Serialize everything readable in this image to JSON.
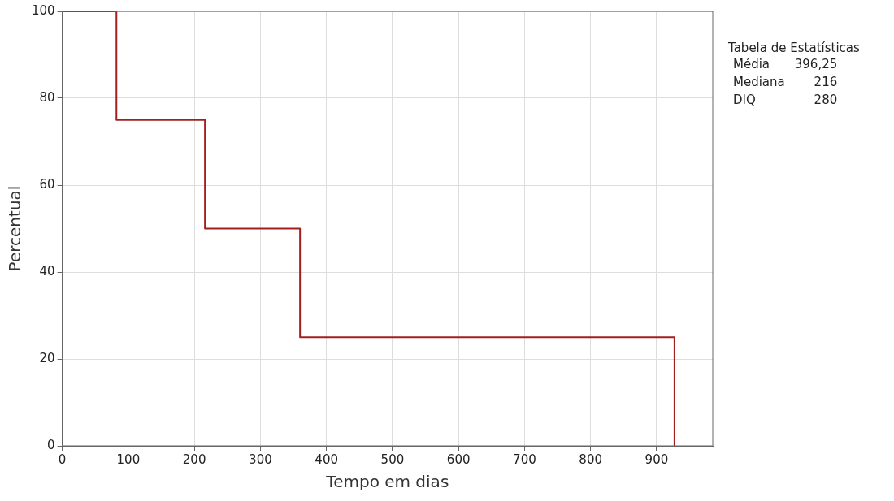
{
  "chart_data": {
    "type": "step",
    "xlabel": "Tempo em dias",
    "ylabel": "Percentual",
    "x": [
      0,
      82,
      216,
      360,
      927
    ],
    "series": [
      {
        "color": "#a31f1f",
        "values": [
          100,
          75,
          50,
          25,
          0
        ]
      }
    ],
    "xlim": [
      0,
      985
    ],
    "xticks": [
      0,
      100,
      200,
      300,
      400,
      500,
      600,
      700,
      800,
      900
    ],
    "ylim": [
      0,
      100
    ],
    "yticks": [
      0,
      20,
      40,
      60,
      80,
      100
    ],
    "grid": true,
    "legend": false,
    "marker": "none",
    "annotations": [
      "Tabela de Estatísticas",
      "Média",
      "396,25",
      "Mediana",
      "216",
      "DIQ",
      "280"
    ]
  }
}
